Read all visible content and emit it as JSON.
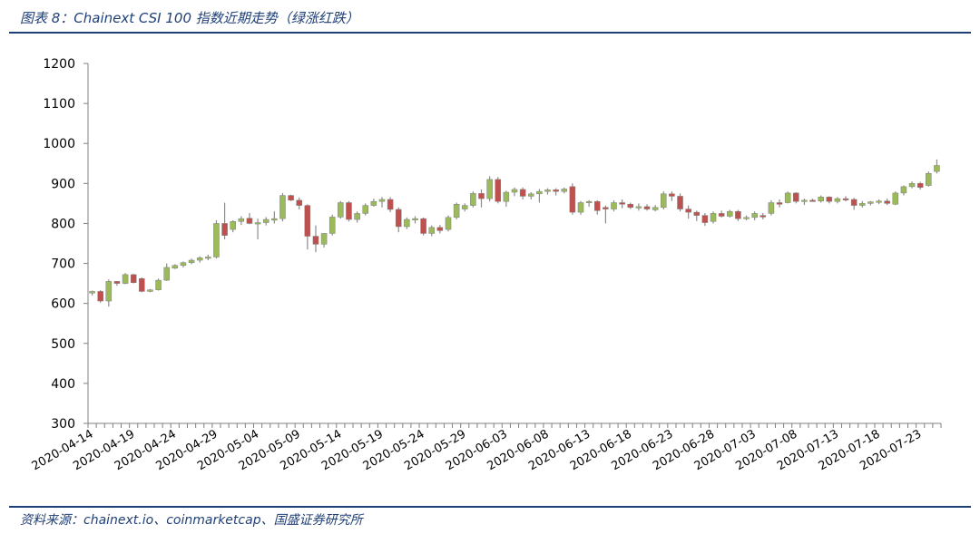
{
  "figure": {
    "title": "图表 8：Chainext CSI 100 指数近期走势（绿涨红跌）",
    "source": "资料来源：chainext.io、coinmarketcap、国盛证券研究所"
  },
  "chart_data": {
    "type": "candlestick",
    "title": "Chainext CSI 100 指数近期走势（绿涨红跌）",
    "up_color": "#9bbb59",
    "down_color": "#c0504d",
    "ylim": [
      300,
      1200
    ],
    "yticks": [
      300,
      400,
      500,
      600,
      700,
      800,
      900,
      1000,
      1100,
      1200
    ],
    "xlabels": [
      "2020-04-14",
      "2020-04-19",
      "2020-04-24",
      "2020-04-29",
      "2020-05-04",
      "2020-05-09",
      "2020-05-14",
      "2020-05-19",
      "2020-05-24",
      "2020-05-29",
      "2020-06-03",
      "2020-06-08",
      "2020-06-13",
      "2020-06-18",
      "2020-06-23",
      "2020-06-28",
      "2020-07-03",
      "2020-07-08",
      "2020-07-13",
      "2020-07-18",
      "2020-07-23"
    ],
    "label_every": 5,
    "candles": [
      [
        626,
        632,
        620,
        630
      ],
      [
        630,
        633,
        602,
        606
      ],
      [
        606,
        660,
        592,
        655
      ],
      [
        655,
        656,
        644,
        650
      ],
      [
        650,
        676,
        648,
        672
      ],
      [
        672,
        674,
        650,
        652
      ],
      [
        662,
        665,
        628,
        630
      ],
      [
        630,
        636,
        628,
        634
      ],
      [
        634,
        662,
        632,
        658
      ],
      [
        658,
        700,
        656,
        690
      ],
      [
        688,
        698,
        686,
        695
      ],
      [
        695,
        705,
        690,
        702
      ],
      [
        702,
        712,
        698,
        708
      ],
      [
        708,
        718,
        702,
        714
      ],
      [
        714,
        722,
        708,
        716
      ],
      [
        716,
        808,
        712,
        800
      ],
      [
        800,
        852,
        760,
        770
      ],
      [
        785,
        808,
        778,
        805
      ],
      [
        805,
        818,
        796,
        812
      ],
      [
        813,
        826,
        798,
        800
      ],
      [
        800,
        812,
        760,
        802
      ],
      [
        802,
        816,
        795,
        810
      ],
      [
        808,
        830,
        800,
        812
      ],
      [
        812,
        876,
        805,
        870
      ],
      [
        870,
        872,
        856,
        858
      ],
      [
        858,
        865,
        835,
        845
      ],
      [
        845,
        848,
        735,
        768
      ],
      [
        768,
        795,
        728,
        748
      ],
      [
        748,
        776,
        740,
        775
      ],
      [
        775,
        822,
        770,
        816
      ],
      [
        816,
        856,
        812,
        852
      ],
      [
        852,
        856,
        805,
        810
      ],
      [
        810,
        830,
        802,
        825
      ],
      [
        825,
        850,
        820,
        845
      ],
      [
        845,
        862,
        842,
        855
      ],
      [
        855,
        866,
        840,
        860
      ],
      [
        860,
        866,
        828,
        835
      ],
      [
        835,
        840,
        778,
        792
      ],
      [
        792,
        815,
        786,
        810
      ],
      [
        810,
        818,
        800,
        812
      ],
      [
        812,
        815,
        770,
        775
      ],
      [
        775,
        795,
        768,
        790
      ],
      [
        790,
        796,
        775,
        782
      ],
      [
        785,
        820,
        780,
        815
      ],
      [
        815,
        852,
        810,
        848
      ],
      [
        836,
        850,
        830,
        845
      ],
      [
        845,
        880,
        840,
        875
      ],
      [
        875,
        885,
        840,
        862
      ],
      [
        862,
        918,
        855,
        910
      ],
      [
        910,
        916,
        850,
        855
      ],
      [
        855,
        882,
        842,
        878
      ],
      [
        878,
        890,
        868,
        885
      ],
      [
        885,
        890,
        860,
        868
      ],
      [
        868,
        878,
        860,
        874
      ],
      [
        874,
        886,
        852,
        880
      ],
      [
        880,
        888,
        872,
        884
      ],
      [
        884,
        888,
        870,
        880
      ],
      [
        880,
        890,
        875,
        886
      ],
      [
        892,
        900,
        822,
        828
      ],
      [
        828,
        856,
        822,
        852
      ],
      [
        852,
        858,
        842,
        855
      ],
      [
        855,
        858,
        822,
        832
      ],
      [
        840,
        845,
        800,
        836
      ],
      [
        836,
        858,
        830,
        852
      ],
      [
        852,
        860,
        838,
        848
      ],
      [
        848,
        852,
        836,
        840
      ],
      [
        840,
        850,
        832,
        842
      ],
      [
        842,
        848,
        832,
        836
      ],
      [
        834,
        846,
        830,
        840
      ],
      [
        840,
        880,
        835,
        874
      ],
      [
        874,
        880,
        856,
        868
      ],
      [
        868,
        875,
        830,
        836
      ],
      [
        836,
        845,
        812,
        828
      ],
      [
        828,
        832,
        806,
        820
      ],
      [
        820,
        826,
        794,
        802
      ],
      [
        805,
        830,
        800,
        825
      ],
      [
        825,
        832,
        815,
        818
      ],
      [
        818,
        834,
        815,
        830
      ],
      [
        830,
        834,
        806,
        812
      ],
      [
        812,
        820,
        808,
        815
      ],
      [
        815,
        830,
        808,
        825
      ],
      [
        820,
        826,
        810,
        816
      ],
      [
        825,
        858,
        820,
        852
      ],
      [
        852,
        860,
        840,
        848
      ],
      [
        852,
        880,
        850,
        876
      ],
      [
        876,
        878,
        850,
        855
      ],
      [
        855,
        862,
        846,
        858
      ],
      [
        858,
        862,
        855,
        856
      ],
      [
        856,
        870,
        852,
        866
      ],
      [
        866,
        868,
        850,
        855
      ],
      [
        855,
        866,
        850,
        862
      ],
      [
        862,
        868,
        855,
        860
      ],
      [
        860,
        864,
        834,
        845
      ],
      [
        845,
        856,
        840,
        850
      ],
      [
        850,
        856,
        845,
        854
      ],
      [
        854,
        860,
        848,
        856
      ],
      [
        856,
        862,
        846,
        850
      ],
      [
        848,
        880,
        846,
        876
      ],
      [
        876,
        895,
        870,
        892
      ],
      [
        892,
        905,
        888,
        900
      ],
      [
        900,
        904,
        885,
        890
      ],
      [
        895,
        930,
        892,
        925
      ],
      [
        930,
        960,
        925,
        945
      ]
    ]
  }
}
